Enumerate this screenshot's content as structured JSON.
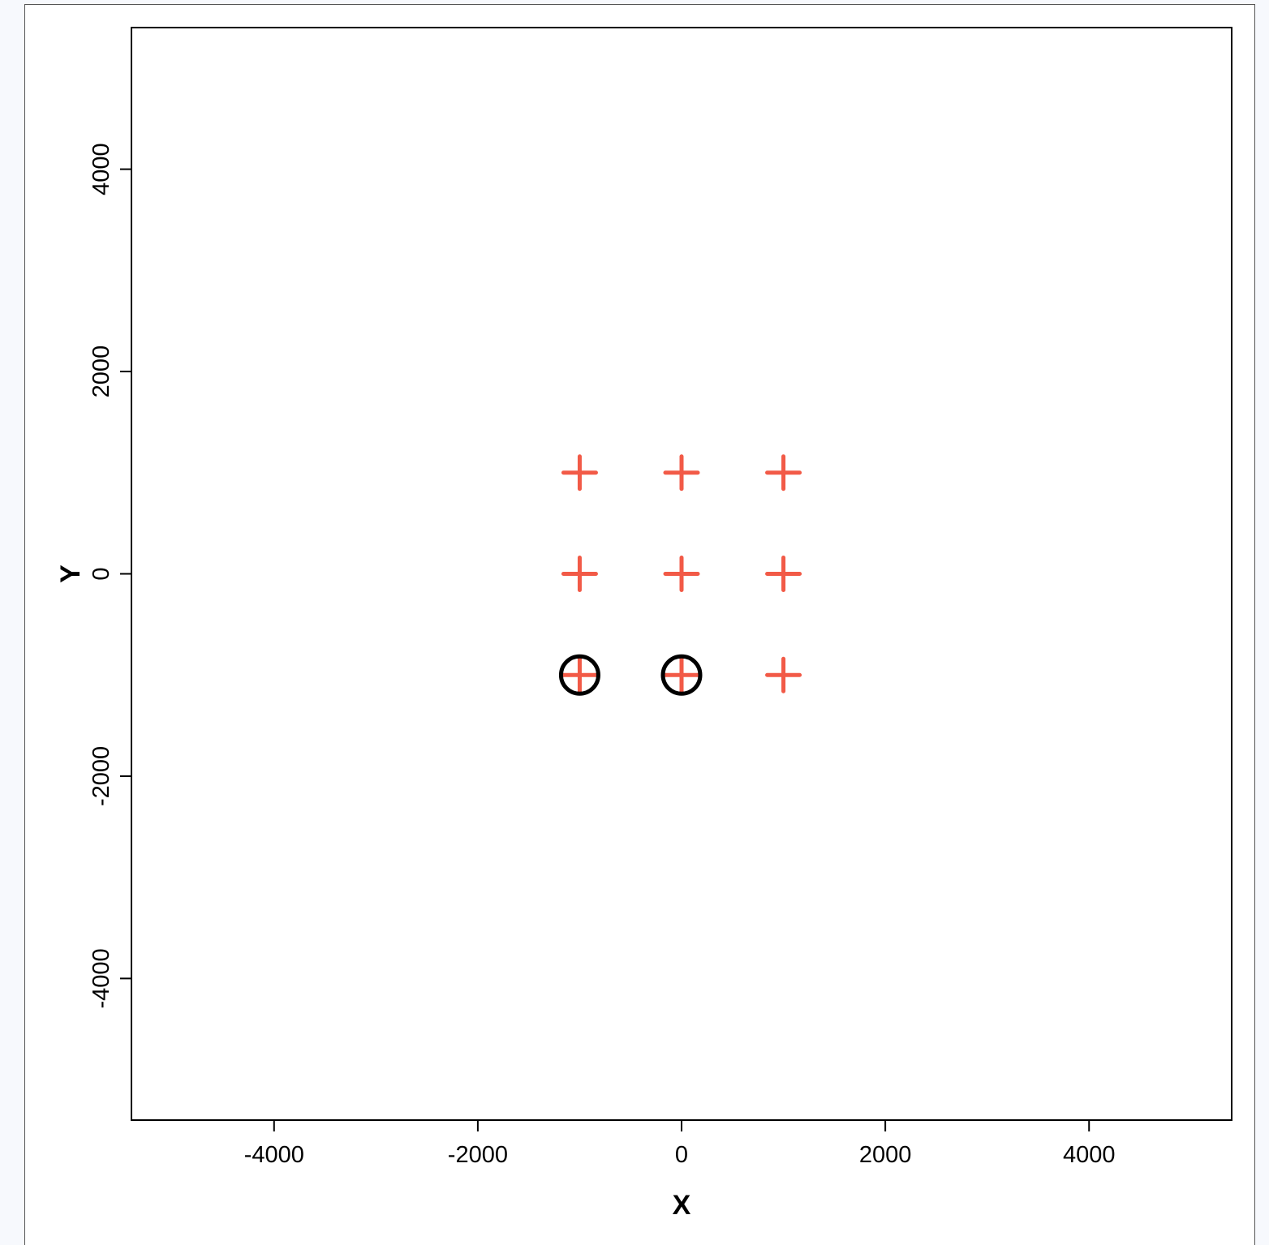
{
  "chart_data": {
    "type": "scatter",
    "xlabel": "X",
    "ylabel": "Y",
    "xlim": [
      -5400,
      5400
    ],
    "ylim": [
      -5400,
      5400
    ],
    "xticks": [
      -4000,
      -2000,
      0,
      2000,
      4000
    ],
    "yticks": [
      -4000,
      -2000,
      0,
      2000,
      4000
    ],
    "grid": false,
    "series": [
      {
        "marker": "plus",
        "color": "#f25a47",
        "points": [
          [
            -1000,
            1000
          ],
          [
            0,
            1000
          ],
          [
            1000,
            1000
          ],
          [
            -1000,
            0
          ],
          [
            0,
            0
          ],
          [
            1000,
            0
          ],
          [
            -1000,
            -1000
          ],
          [
            0,
            -1000
          ],
          [
            1000,
            -1000
          ]
        ]
      },
      {
        "marker": "circle",
        "color": "#000000",
        "points": [
          [
            -1000,
            -1000
          ],
          [
            0,
            -1000
          ]
        ]
      }
    ]
  }
}
